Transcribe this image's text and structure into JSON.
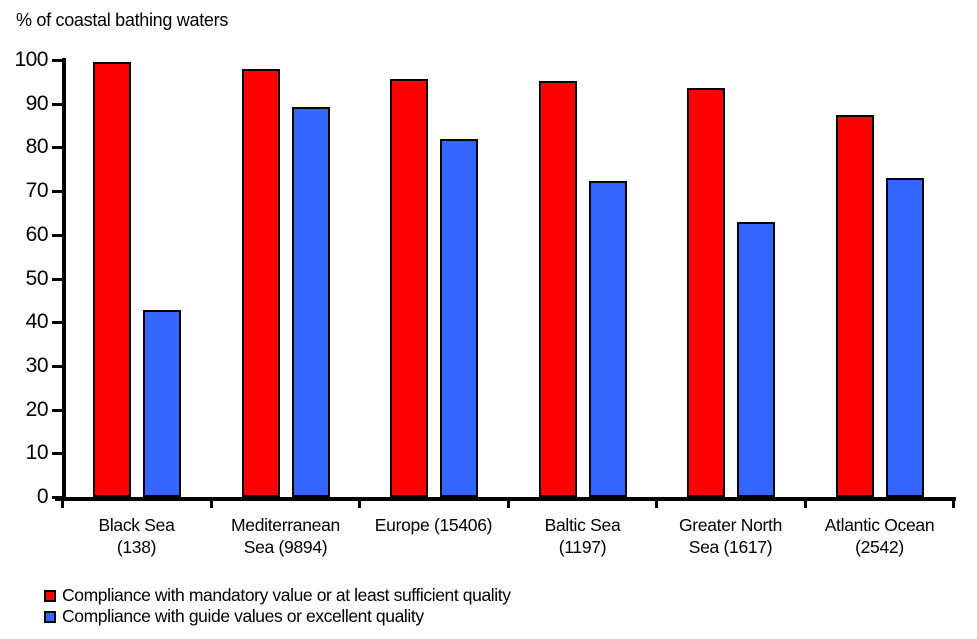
{
  "chart_data": {
    "type": "bar",
    "title": "% of coastal bathing waters",
    "categories": [
      "Black Sea (138)",
      "Mediterranean Sea (9894)",
      "Europe (15406)",
      "Baltic Sea (1197)",
      "Greater North Sea (1617)",
      "Atlantic Ocean (2542)"
    ],
    "category_label_lines": [
      [
        "Black Sea",
        "(138)"
      ],
      [
        "Mediterranean",
        "Sea (9894)"
      ],
      [
        "Europe (15406)"
      ],
      [
        "Baltic Sea",
        "(1197)"
      ],
      [
        "Greater North",
        "Sea (1617)"
      ],
      [
        "Atlantic Ocean",
        "(2542)"
      ]
    ],
    "series": [
      {
        "name": "Compliance with mandatory value or at least sufficient quality",
        "color": "#FF0000",
        "values": [
          99.5,
          98.0,
          95.6,
          95.3,
          93.7,
          87.5
        ]
      },
      {
        "name": "Compliance with guide values or excellent quality",
        "color": "#3366FF",
        "values": [
          42.7,
          89.2,
          82.0,
          72.4,
          62.9,
          72.9
        ]
      }
    ],
    "xlabel": "",
    "ylabel": "% of coastal bathing waters",
    "ylim": [
      0,
      100
    ],
    "yticks": [
      0,
      10,
      20,
      30,
      40,
      50,
      60,
      70,
      80,
      90,
      100
    ],
    "grid": false,
    "legend_position": "bottom-left",
    "axis_color": "#000000",
    "background_color": "#FFFFFF"
  }
}
